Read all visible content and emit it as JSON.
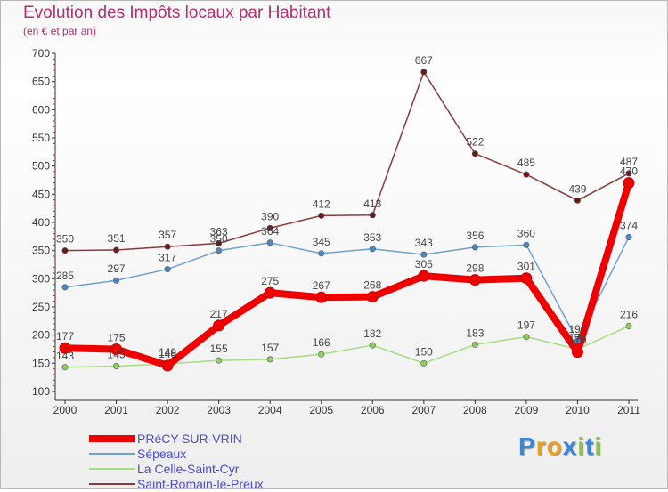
{
  "header": {
    "title": "Evolution des Impôts locaux par Habitant",
    "subtitle": "(en € et par an)"
  },
  "logo": {
    "text": "Proxiti",
    "colors": [
      "#3a86d6",
      "#e8a020",
      "#e8a020",
      "#3a86d6",
      "#8ac640",
      "#3a86d6",
      "#8ac640"
    ]
  },
  "chart_data": {
    "type": "line",
    "title": "Evolution des Impôts locaux par Habitant",
    "subtitle": "(en € et par an)",
    "xlabel": "",
    "ylabel": "",
    "x": [
      "2000",
      "2001",
      "2002",
      "2003",
      "2004",
      "2005",
      "2006",
      "2007",
      "2008",
      "2009",
      "2010",
      "2011"
    ],
    "ylim": [
      100,
      700
    ],
    "yticks": [
      "100",
      "150",
      "200",
      "250",
      "300",
      "350",
      "400",
      "450",
      "500",
      "550",
      "600",
      "650",
      "700"
    ],
    "grid": false,
    "legend_position": "bottom-left",
    "series": [
      {
        "name": "PRéCY-SUR-VRIN",
        "values": [
          177,
          175,
          146,
          217,
          275,
          267,
          268,
          305,
          298,
          301,
          170,
          470
        ],
        "labels": [
          "177",
          "175",
          "146",
          "217",
          "275",
          "267",
          "268",
          "305",
          "298",
          "301",
          "170",
          "470"
        ],
        "color": "#ee0000",
        "marker": "#ee0000",
        "width": 8,
        "radius": 6
      },
      {
        "name": "Sépeaux",
        "values": [
          285,
          297,
          317,
          350,
          364,
          345,
          353,
          343,
          356,
          360,
          190,
          374
        ],
        "labels": [
          "285",
          "297",
          "317",
          "350",
          "364",
          "345",
          "353",
          "343",
          "356",
          "360",
          "190",
          "374"
        ],
        "color": "#6f9fd0",
        "marker": "#4f86c6",
        "width": 1.5,
        "radius": 3.2
      },
      {
        "name": "La Celle-Saint-Cyr",
        "values": [
          143,
          145,
          149,
          155,
          157,
          166,
          182,
          150,
          183,
          197,
          175,
          216
        ],
        "labels": [
          "143",
          "145",
          "149",
          "155",
          "157",
          "166",
          "182",
          "150",
          "183",
          "197",
          "175",
          "216"
        ],
        "color": "#a6dd80",
        "marker": "#8ed060",
        "width": 1.5,
        "radius": 3.2
      },
      {
        "name": "Saint-Romain-le-Preux",
        "values": [
          350,
          351,
          357,
          363,
          390,
          412,
          413,
          667,
          522,
          485,
          439,
          487
        ],
        "labels": [
          "350",
          "351",
          "357",
          "363",
          "390",
          "412",
          "413",
          "667",
          "522",
          "485",
          "439",
          "487"
        ],
        "color": "#8a3a3a",
        "marker": "#6a1a1a",
        "width": 1.5,
        "radius": 3.2
      }
    ]
  }
}
